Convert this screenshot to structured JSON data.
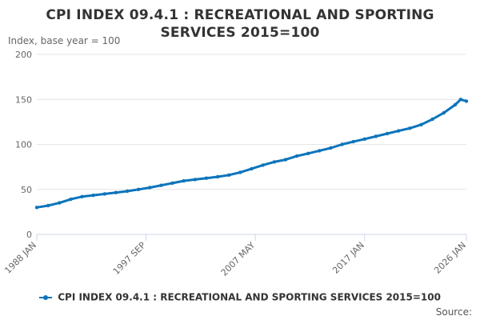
{
  "chart_data": {
    "type": "line",
    "title": "CPI INDEX 09.4.1 : RECREATIONAL AND SPORTING SERVICES 2015=100",
    "ylabel": "Index, base year = 100",
    "xlabel": "",
    "ylim": [
      0,
      200
    ],
    "yticks": [
      0,
      50,
      100,
      150,
      200
    ],
    "xlim": [
      1988.0,
      2026.0
    ],
    "xticks": [
      {
        "label": "1988 JAN",
        "year": 1988.0
      },
      {
        "label": "1997 SEP",
        "year": 1997.67
      },
      {
        "label": "2007 MAY",
        "year": 2007.33
      },
      {
        "label": "2017 JAN",
        "year": 2017.0
      },
      {
        "label": "2026 JAN",
        "year": 2026.0
      }
    ],
    "grid": true,
    "legend_position": "bottom",
    "series": [
      {
        "name": "CPI INDEX 09.4.1 : RECREATIONAL AND SPORTING SERVICES 2015=100",
        "color": "#0C74BB",
        "x": [
          1988,
          1989,
          1990,
          1991,
          1992,
          1993,
          1994,
          1995,
          1996,
          1997,
          1998,
          1999,
          2000,
          2001,
          2002,
          2003,
          2004,
          2005,
          2006,
          2007,
          2008,
          2009,
          2010,
          2011,
          2012,
          2013,
          2014,
          2015,
          2016,
          2017,
          2018,
          2019,
          2020,
          2021,
          2022,
          2023,
          2024,
          2025,
          2025.5,
          2026
        ],
        "y": [
          30,
          32,
          35,
          39,
          42,
          43.5,
          45,
          46.5,
          48,
          50,
          52,
          54.5,
          57,
          59.5,
          61,
          62.5,
          64,
          66,
          69,
          73,
          77,
          80.5,
          83,
          87,
          90,
          93,
          96,
          100,
          103,
          106,
          109,
          112,
          115,
          118,
          122,
          128,
          135,
          144,
          150,
          148
        ]
      }
    ]
  },
  "legend": {
    "label": "CPI INDEX 09.4.1 : RECREATIONAL AND SPORTING SERVICES 2015=100"
  },
  "source": "Source:"
}
